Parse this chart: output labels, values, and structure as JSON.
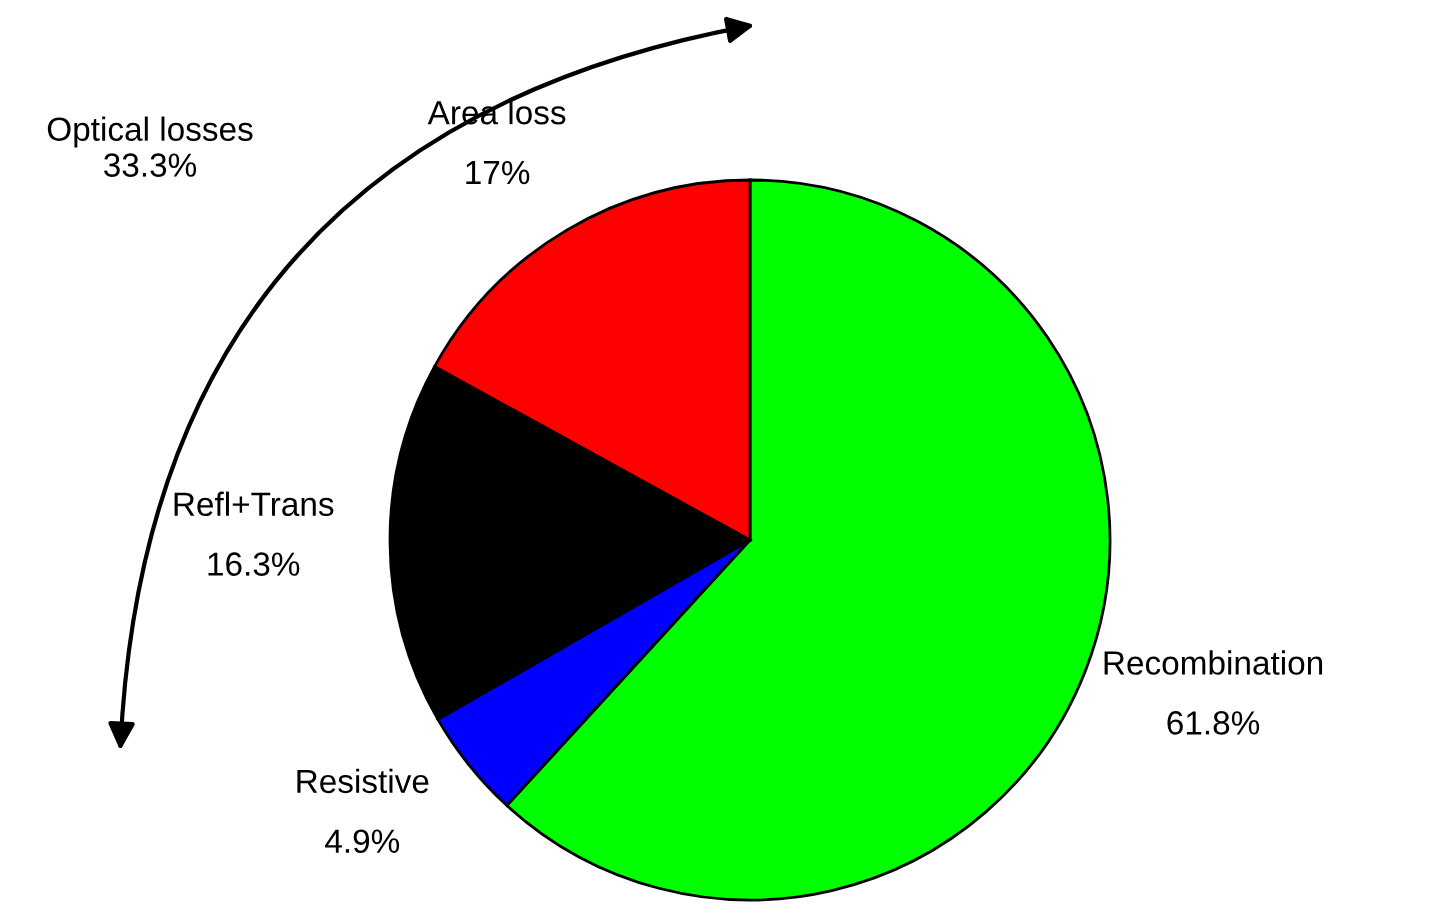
{
  "chart_data": {
    "type": "pie",
    "categories": [
      "Recombination",
      "Resistive",
      "Refl+Trans",
      "Area loss"
    ],
    "values": [
      61.8,
      4.9,
      16.3,
      17
    ],
    "value_labels": [
      "61.8%",
      "4.9%",
      "16.3%",
      "17%"
    ],
    "colors": [
      "#00ff00",
      "#0000ff",
      "#000000",
      "#ff0000"
    ],
    "annotations": [
      "Optical losses\n33.3%"
    ]
  }
}
